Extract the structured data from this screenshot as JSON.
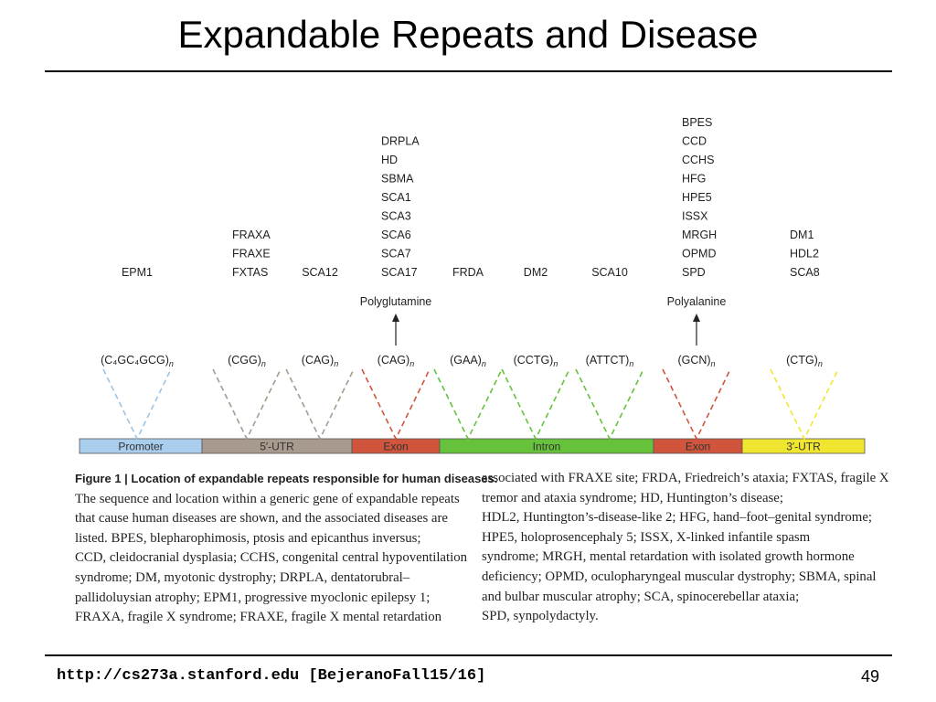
{
  "slide": {
    "title": "Expandable Repeats and Disease",
    "footer_url": "http://cs273a.stanford.edu [BejeranoFall15/16]",
    "page_number": "49"
  },
  "gene_regions": [
    {
      "label": "Promoter",
      "color": "#a9cdec"
    },
    {
      "label": "5′-UTR",
      "color": "#a89a8c"
    },
    {
      "label": "Exon",
      "color": "#d0553c"
    },
    {
      "label": "Intron",
      "color": "#67c23b"
    },
    {
      "label": "Exon",
      "color": "#d0553c"
    },
    {
      "label": "3′-UTR",
      "color": "#f0e630"
    }
  ],
  "repeats": [
    {
      "unit": "(C₄GC₄GCG)",
      "sub": "n",
      "color": "#9cc4e6"
    },
    {
      "unit": "(CGG)",
      "sub": "n",
      "color": "#a89a8c"
    },
    {
      "unit": "(CAG)",
      "sub": "n",
      "color": "#a89a8c"
    },
    {
      "unit": "(CAG)",
      "sub": "n",
      "color": "#d0553c"
    },
    {
      "unit": "(GAA)",
      "sub": "n",
      "color": "#67c23b"
    },
    {
      "unit": "(CCTG)",
      "sub": "n",
      "color": "#67c23b"
    },
    {
      "unit": "(ATTCT)",
      "sub": "n",
      "color": "#67c23b"
    },
    {
      "unit": "(GCN)",
      "sub": "n",
      "color": "#d0553c"
    },
    {
      "unit": "(CTG)",
      "sub": "n",
      "color": "#f0e630"
    }
  ],
  "disease_groups": [
    {
      "diseases": [
        "EPM1"
      ]
    },
    {
      "diseases": [
        "FRAXA",
        "FRAXE",
        "FXTAS"
      ]
    },
    {
      "diseases": [
        "SCA12"
      ]
    },
    {
      "diseases": [
        "DRPLA",
        "HD",
        "SBMA",
        "SCA1",
        "SCA3",
        "SCA6",
        "SCA7",
        "SCA17"
      ],
      "annotation": "Polyglutamine"
    },
    {
      "diseases": [
        "FRDA"
      ]
    },
    {
      "diseases": [
        "DM2"
      ]
    },
    {
      "diseases": [
        "SCA10"
      ]
    },
    {
      "diseases": [
        "BPES",
        "CCD",
        "CCHS",
        "HFG",
        "HPE5",
        "ISSX",
        "MRGH",
        "OPMD",
        "SPD"
      ],
      "annotation": "Polyalanine"
    },
    {
      "diseases": [
        "DM1",
        "HDL2",
        "SCA8"
      ]
    }
  ],
  "caption": {
    "heading": "Figure 1 | Location of expandable repeats responsible for human diseases.",
    "left_lines": [
      "The sequence and location within a generic gene of expandable repeats",
      "that cause human diseases are shown, and the associated diseases are",
      "listed. BPES, blepharophimosis, ptosis and epicanthus inversus;",
      "CCD, cleidocranial dysplasia; CCHS, congenital central hypoventilation",
      "syndrome; DM, myotonic dystrophy; DRPLA, dentatorubral–",
      "pallidoluysian atrophy; EPM1, progressive myoclonic epilepsy 1;",
      "FRAXA, fragile X syndrome; FRAXE, fragile X mental retardation"
    ],
    "right_lines": [
      "associated with FRAXE site; FRDA, Friedreich’s ataxia; FXTAS, fragile X",
      "tremor and ataxia syndrome; HD, Huntington’s disease;",
      "HDL2, Huntington’s-disease-like 2; HFG, hand–foot–genital syndrome;",
      "HPE5, holoprosencephaly 5; ISSX, X-linked infantile spasm",
      "syndrome; MRGH, mental retardation with isolated growth hormone",
      "deficiency; OPMD, oculopharyngeal muscular dystrophy; SBMA, spinal",
      "and bulbar muscular atrophy; SCA, spinocerebellar ataxia;",
      "SPD, synpolydactyly."
    ]
  }
}
